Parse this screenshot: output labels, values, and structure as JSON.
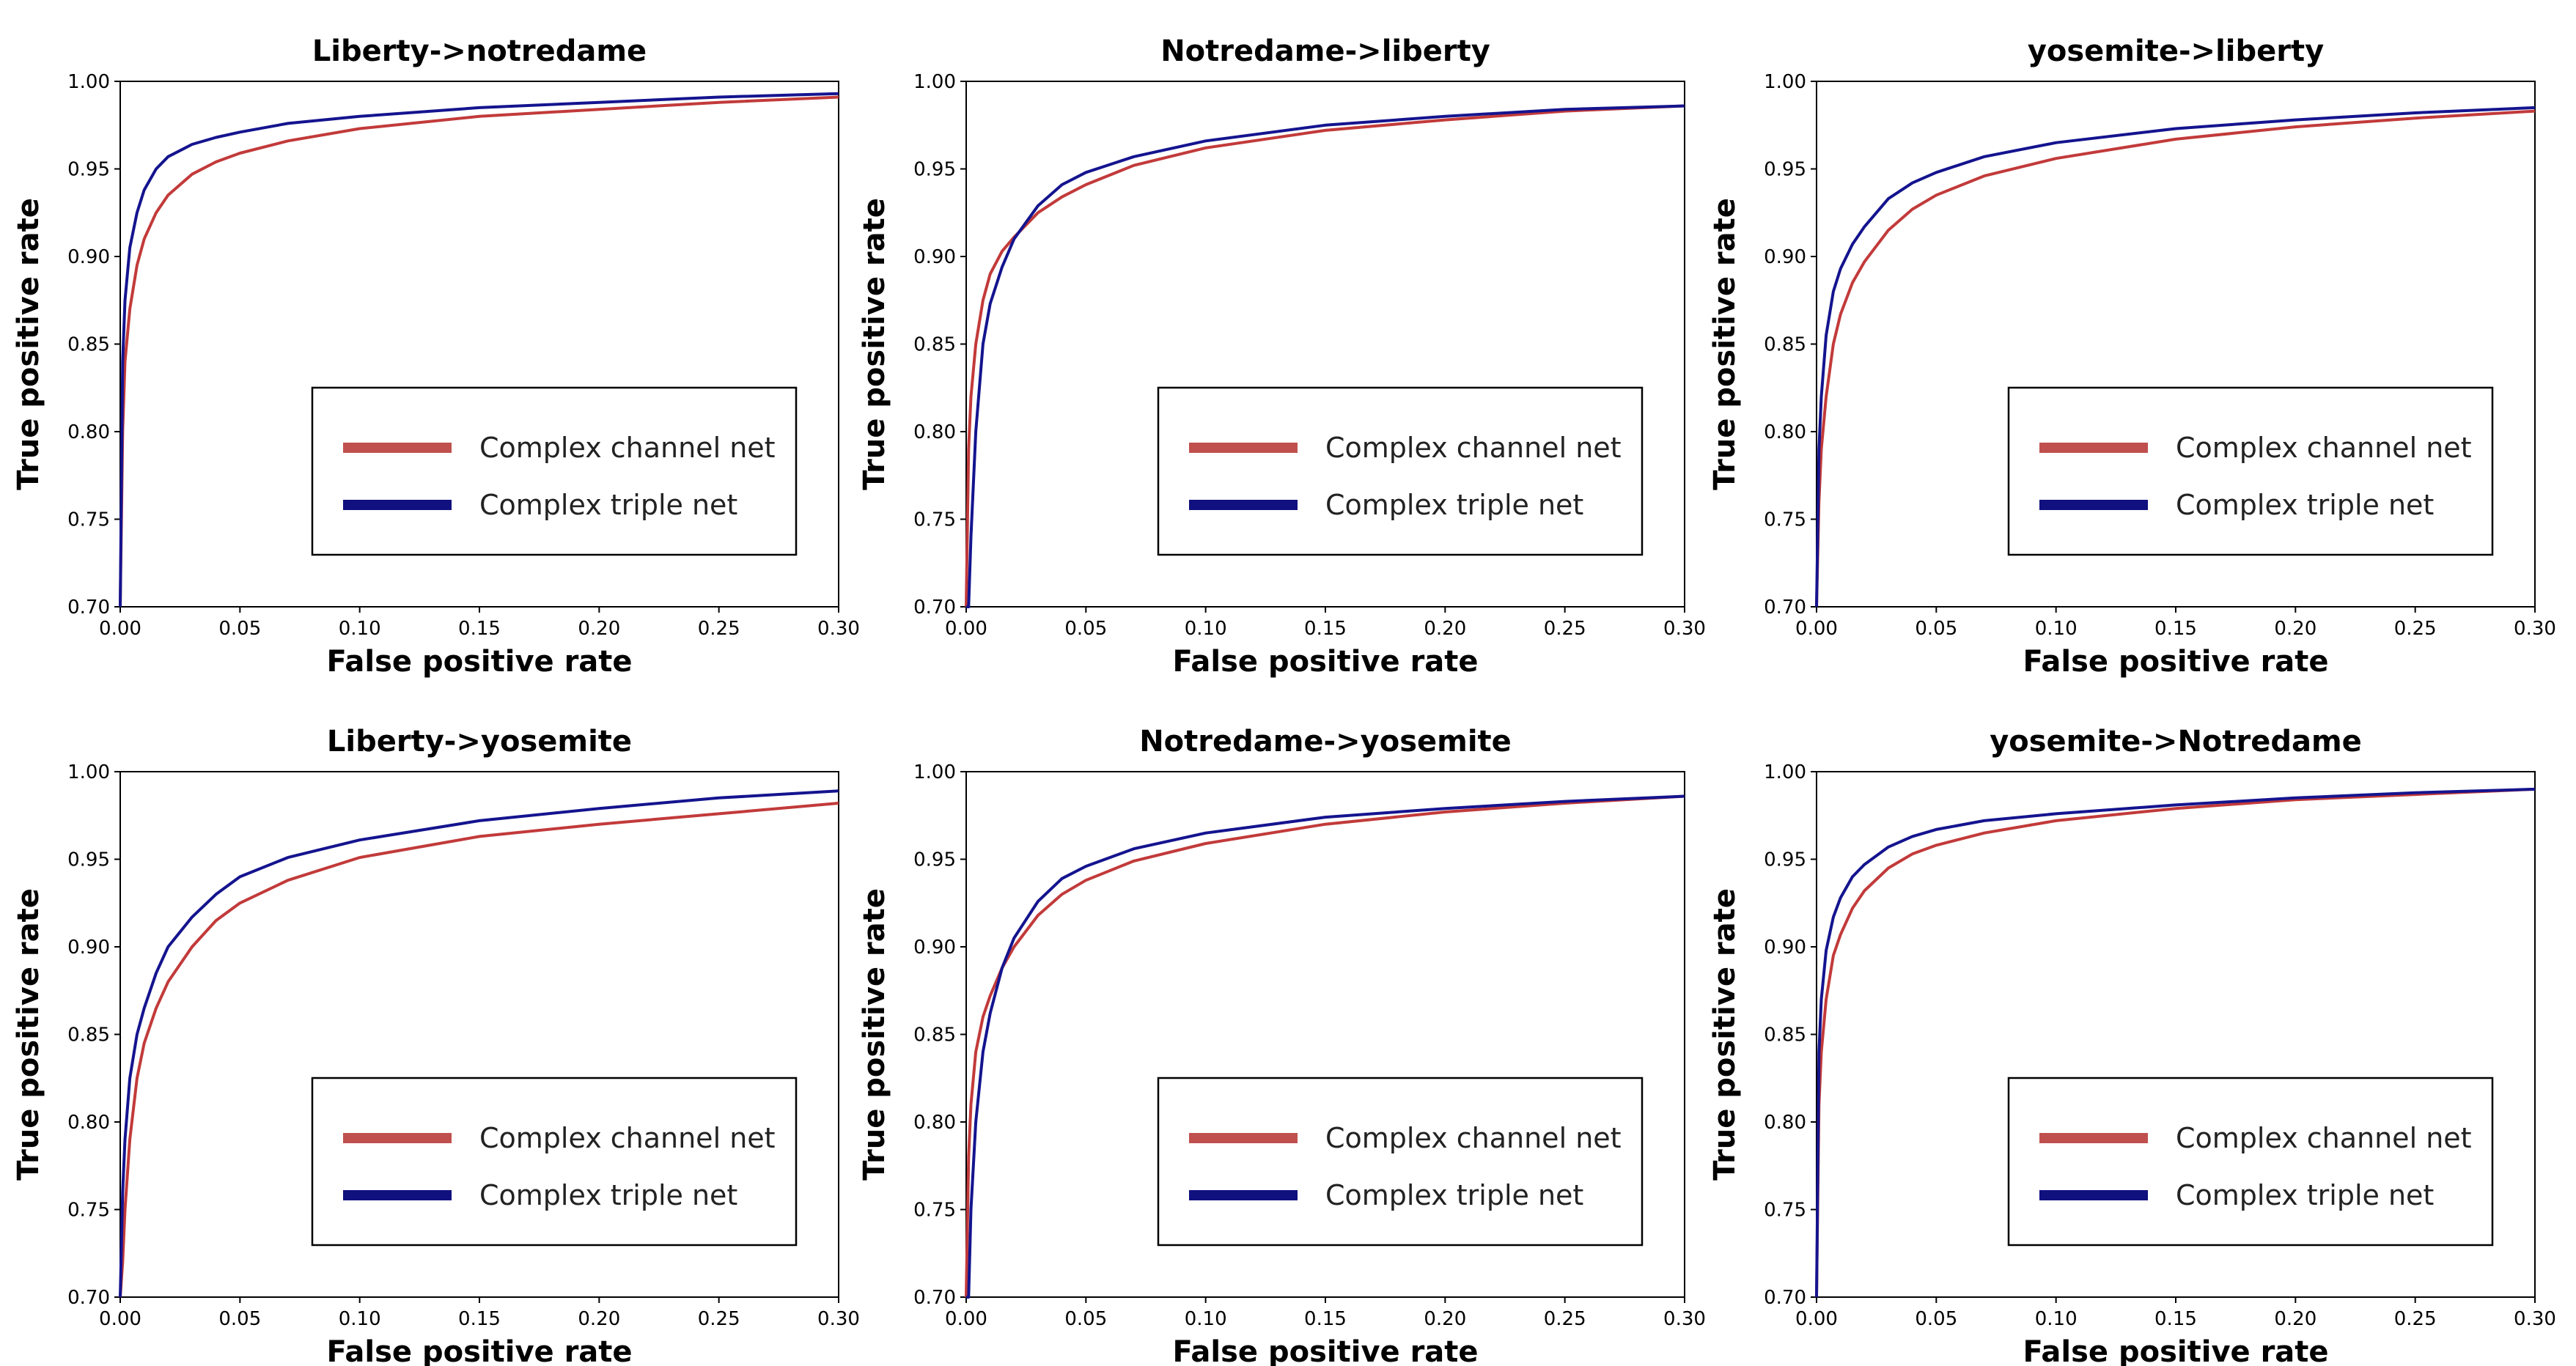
{
  "colors": {
    "channel": "#c23a3a",
    "triple": "#14148f",
    "legend_channel": "#c0504d",
    "legend_triple": "#10107f"
  },
  "chart_data": [
    {
      "type": "line",
      "title": "Liberty->notredame",
      "xlabel": "False positive rate",
      "ylabel": "True positive rate",
      "xlim": [
        0,
        0.3
      ],
      "ylim": [
        0.7,
        1.0
      ],
      "xticks": [
        "0.00",
        "0.05",
        "0.10",
        "0.15",
        "0.20",
        "0.25",
        "0.30"
      ],
      "yticks": [
        "0.70",
        "0.75",
        "0.80",
        "0.85",
        "0.90",
        "0.95",
        "1.00"
      ],
      "legend": [
        "Complex channel net",
        "Complex triple net"
      ],
      "x": [
        0,
        0.001,
        0.002,
        0.004,
        0.007,
        0.01,
        0.015,
        0.02,
        0.03,
        0.04,
        0.05,
        0.07,
        0.1,
        0.15,
        0.2,
        0.25,
        0.3
      ],
      "series": [
        {
          "name": "Complex channel net",
          "values": [
            0.7,
            0.8,
            0.84,
            0.87,
            0.895,
            0.91,
            0.925,
            0.935,
            0.947,
            0.954,
            0.959,
            0.966,
            0.973,
            0.98,
            0.984,
            0.988,
            0.991
          ]
        },
        {
          "name": "Complex triple net",
          "values": [
            0.7,
            0.84,
            0.875,
            0.905,
            0.925,
            0.938,
            0.95,
            0.957,
            0.964,
            0.968,
            0.971,
            0.976,
            0.98,
            0.985,
            0.988,
            0.991,
            0.993
          ]
        }
      ]
    },
    {
      "type": "line",
      "title": "Notredame->liberty",
      "xlabel": "False positive rate",
      "ylabel": "True positive rate",
      "xlim": [
        0,
        0.3
      ],
      "ylim": [
        0.7,
        1.0
      ],
      "xticks": [
        "0.00",
        "0.05",
        "0.10",
        "0.15",
        "0.20",
        "0.25",
        "0.30"
      ],
      "yticks": [
        "0.70",
        "0.75",
        "0.80",
        "0.85",
        "0.90",
        "0.95",
        "1.00"
      ],
      "legend": [
        "Complex channel net",
        "Complex triple net"
      ],
      "x": [
        0,
        0.001,
        0.002,
        0.004,
        0.007,
        0.01,
        0.015,
        0.02,
        0.03,
        0.04,
        0.05,
        0.07,
        0.1,
        0.15,
        0.2,
        0.25,
        0.3
      ],
      "series": [
        {
          "name": "Complex channel net",
          "values": [
            0.7,
            0.79,
            0.82,
            0.85,
            0.875,
            0.89,
            0.903,
            0.911,
            0.925,
            0.934,
            0.941,
            0.952,
            0.962,
            0.972,
            0.978,
            0.983,
            0.986
          ]
        },
        {
          "name": "Complex triple net",
          "values": [
            0.7,
            0.7,
            0.74,
            0.8,
            0.85,
            0.873,
            0.894,
            0.91,
            0.929,
            0.941,
            0.948,
            0.957,
            0.966,
            0.975,
            0.98,
            0.984,
            0.986
          ]
        }
      ]
    },
    {
      "type": "line",
      "title": "yosemite->liberty",
      "xlabel": "False positive rate",
      "ylabel": "True positive rate",
      "xlim": [
        0,
        0.3
      ],
      "ylim": [
        0.7,
        1.0
      ],
      "xticks": [
        "0.00",
        "0.05",
        "0.10",
        "0.15",
        "0.20",
        "0.25",
        "0.30"
      ],
      "yticks": [
        "0.70",
        "0.75",
        "0.80",
        "0.85",
        "0.90",
        "0.95",
        "1.00"
      ],
      "legend": [
        "Complex channel net",
        "Complex triple net"
      ],
      "x": [
        0,
        0.001,
        0.002,
        0.004,
        0.007,
        0.01,
        0.015,
        0.02,
        0.03,
        0.04,
        0.05,
        0.07,
        0.1,
        0.15,
        0.2,
        0.25,
        0.3
      ],
      "series": [
        {
          "name": "Complex channel net",
          "values": [
            0.7,
            0.76,
            0.79,
            0.82,
            0.85,
            0.867,
            0.885,
            0.897,
            0.915,
            0.927,
            0.935,
            0.946,
            0.956,
            0.967,
            0.974,
            0.979,
            0.983
          ]
        },
        {
          "name": "Complex triple net",
          "values": [
            0.7,
            0.79,
            0.82,
            0.855,
            0.88,
            0.893,
            0.907,
            0.917,
            0.933,
            0.942,
            0.948,
            0.957,
            0.965,
            0.973,
            0.978,
            0.982,
            0.985
          ]
        }
      ]
    },
    {
      "type": "line",
      "title": "Liberty->yosemite",
      "xlabel": "False positive rate",
      "ylabel": "True positive rate",
      "xlim": [
        0,
        0.3
      ],
      "ylim": [
        0.7,
        1.0
      ],
      "xticks": [
        "0.00",
        "0.05",
        "0.10",
        "0.15",
        "0.20",
        "0.25",
        "0.30"
      ],
      "yticks": [
        "0.70",
        "0.75",
        "0.80",
        "0.85",
        "0.90",
        "0.95",
        "1.00"
      ],
      "legend": [
        "Complex channel net",
        "Complex triple net"
      ],
      "x": [
        0,
        0.001,
        0.002,
        0.004,
        0.007,
        0.01,
        0.015,
        0.02,
        0.03,
        0.04,
        0.05,
        0.07,
        0.1,
        0.15,
        0.2,
        0.25,
        0.3
      ],
      "series": [
        {
          "name": "Complex channel net",
          "values": [
            0.7,
            0.72,
            0.75,
            0.79,
            0.825,
            0.845,
            0.865,
            0.88,
            0.9,
            0.915,
            0.925,
            0.938,
            0.951,
            0.963,
            0.97,
            0.976,
            0.982
          ]
        },
        {
          "name": "Complex triple net",
          "values": [
            0.7,
            0.76,
            0.79,
            0.825,
            0.85,
            0.865,
            0.885,
            0.9,
            0.917,
            0.93,
            0.94,
            0.951,
            0.961,
            0.972,
            0.979,
            0.985,
            0.989
          ]
        }
      ]
    },
    {
      "type": "line",
      "title": "Notredame->yosemite",
      "xlabel": "False positive rate",
      "ylabel": "True positive rate",
      "xlim": [
        0,
        0.3
      ],
      "ylim": [
        0.7,
        1.0
      ],
      "xticks": [
        "0.00",
        "0.05",
        "0.10",
        "0.15",
        "0.20",
        "0.25",
        "0.30"
      ],
      "yticks": [
        "0.70",
        "0.75",
        "0.80",
        "0.85",
        "0.90",
        "0.95",
        "1.00"
      ],
      "legend": [
        "Complex channel net",
        "Complex triple net"
      ],
      "x": [
        0,
        0.001,
        0.002,
        0.004,
        0.007,
        0.01,
        0.015,
        0.02,
        0.03,
        0.04,
        0.05,
        0.07,
        0.1,
        0.15,
        0.2,
        0.25,
        0.3
      ],
      "series": [
        {
          "name": "Complex channel net",
          "values": [
            0.7,
            0.78,
            0.81,
            0.84,
            0.86,
            0.872,
            0.888,
            0.9,
            0.918,
            0.93,
            0.938,
            0.949,
            0.959,
            0.97,
            0.977,
            0.982,
            0.986
          ]
        },
        {
          "name": "Complex triple net",
          "values": [
            0.7,
            0.7,
            0.75,
            0.8,
            0.84,
            0.862,
            0.888,
            0.905,
            0.926,
            0.939,
            0.946,
            0.956,
            0.965,
            0.974,
            0.979,
            0.983,
            0.986
          ]
        }
      ]
    },
    {
      "type": "line",
      "title": "yosemite->Notredame",
      "xlabel": "False positive rate",
      "ylabel": "True positive rate",
      "xlim": [
        0,
        0.3
      ],
      "ylim": [
        0.7,
        1.0
      ],
      "xticks": [
        "0.00",
        "0.05",
        "0.10",
        "0.15",
        "0.20",
        "0.25",
        "0.30"
      ],
      "yticks": [
        "0.70",
        "0.75",
        "0.80",
        "0.85",
        "0.90",
        "0.95",
        "1.00"
      ],
      "legend": [
        "Complex channel net",
        "Complex triple net"
      ],
      "x": [
        0,
        0.001,
        0.002,
        0.004,
        0.007,
        0.01,
        0.015,
        0.02,
        0.03,
        0.04,
        0.05,
        0.07,
        0.1,
        0.15,
        0.2,
        0.25,
        0.3
      ],
      "series": [
        {
          "name": "Complex channel net",
          "values": [
            0.7,
            0.81,
            0.84,
            0.87,
            0.895,
            0.907,
            0.922,
            0.932,
            0.945,
            0.953,
            0.958,
            0.965,
            0.972,
            0.979,
            0.984,
            0.987,
            0.99
          ]
        },
        {
          "name": "Complex triple net",
          "values": [
            0.7,
            0.84,
            0.87,
            0.898,
            0.917,
            0.928,
            0.94,
            0.947,
            0.957,
            0.963,
            0.967,
            0.972,
            0.976,
            0.981,
            0.985,
            0.988,
            0.99
          ]
        }
      ]
    }
  ]
}
